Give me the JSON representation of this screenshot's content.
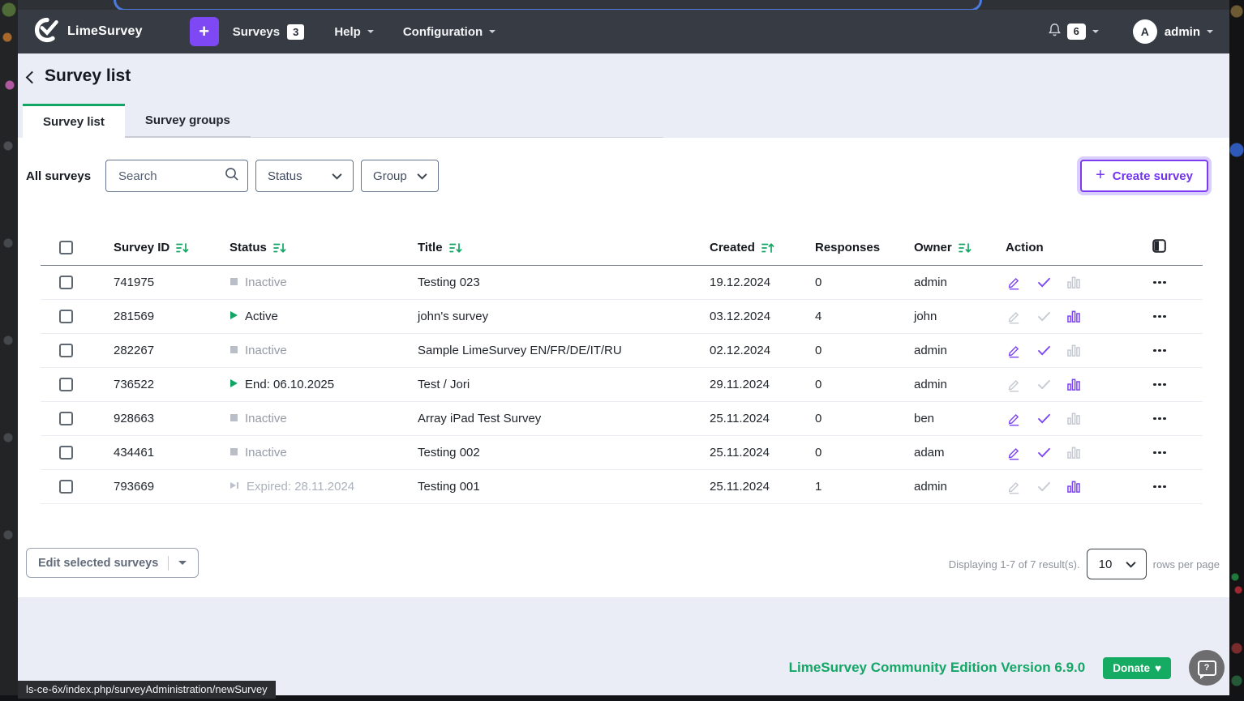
{
  "browser": {
    "status_url": "ls-ce-6x/index.php/surveyAdministration/newSurvey"
  },
  "navbar": {
    "brand": "LimeSurvey",
    "plus_button": "+",
    "surveys_label": "Surveys",
    "surveys_count": "3",
    "help_label": "Help",
    "configuration_label": "Configuration",
    "notification_count": "6",
    "avatar_letter": "A",
    "user_name": "admin"
  },
  "page": {
    "back_title": "Survey list",
    "tabs": [
      {
        "label": "Survey list",
        "active": true
      },
      {
        "label": "Survey groups",
        "active": false
      }
    ],
    "filters": {
      "all_surveys_label": "All surveys",
      "search_placeholder": "Search",
      "status_label": "Status",
      "group_label": "Group",
      "create_plus": "+",
      "create_button": "Create survey"
    },
    "table": {
      "columns": [
        {
          "label": "Survey ID",
          "sort": "desc"
        },
        {
          "label": "Status",
          "sort": "desc"
        },
        {
          "label": "Title",
          "sort": "desc"
        },
        {
          "label": "Created",
          "sort": "asc"
        },
        {
          "label": "Responses",
          "sort": null
        },
        {
          "label": "Owner",
          "sort": "desc"
        },
        {
          "label": "Action",
          "sort": null
        }
      ],
      "rows": [
        {
          "id": "741975",
          "status": "Inactive",
          "status_type": "inactive",
          "title": "Testing 023",
          "created": "19.12.2024",
          "responses": "0",
          "owner": "admin",
          "edit_enabled": true,
          "stats_enabled": false
        },
        {
          "id": "281569",
          "status": "Active",
          "status_type": "active",
          "title": "john's survey",
          "created": "03.12.2024",
          "responses": "4",
          "owner": "john",
          "edit_enabled": false,
          "stats_enabled": true
        },
        {
          "id": "282267",
          "status": "Inactive",
          "status_type": "inactive",
          "title": "Sample LimeSurvey EN/FR/DE/IT/RU",
          "created": "02.12.2024",
          "responses": "0",
          "owner": "admin",
          "edit_enabled": true,
          "stats_enabled": false
        },
        {
          "id": "736522",
          "status": "End: 06.10.2025",
          "status_type": "active",
          "title": "Test / Jori",
          "created": "29.11.2024",
          "responses": "0",
          "owner": "admin",
          "edit_enabled": false,
          "stats_enabled": true
        },
        {
          "id": "928663",
          "status": "Inactive",
          "status_type": "inactive",
          "title": "Array iPad Test Survey",
          "created": "25.11.2024",
          "responses": "0",
          "owner": "ben",
          "edit_enabled": true,
          "stats_enabled": false
        },
        {
          "id": "434461",
          "status": "Inactive",
          "status_type": "inactive",
          "title": "Testing 002",
          "created": "25.11.2024",
          "responses": "0",
          "owner": "adam",
          "edit_enabled": true,
          "stats_enabled": false
        },
        {
          "id": "793669",
          "status": "Expired: 28.11.2024",
          "status_type": "expired",
          "title": "Testing 001",
          "created": "25.11.2024",
          "responses": "1",
          "owner": "admin",
          "edit_enabled": false,
          "stats_enabled": true
        }
      ]
    },
    "footer_bar": {
      "edit_selected_label": "Edit selected surveys",
      "displaying_text": "Displaying 1-7 of 7 result(s).",
      "page_size": "10",
      "rows_per_page_label": "rows per page"
    }
  },
  "footer": {
    "version_text": "LimeSurvey Community Edition Version 6.9.0",
    "donate_label": "Donate"
  },
  "icons": {
    "donate_heart": "♥"
  },
  "colors": {
    "accent_purple": "#7d46f3",
    "brand_green": "#12a565",
    "navbar_bg": "#363b44",
    "page_bg": "#ebedf6",
    "inactive_gray": "#949aa5"
  }
}
